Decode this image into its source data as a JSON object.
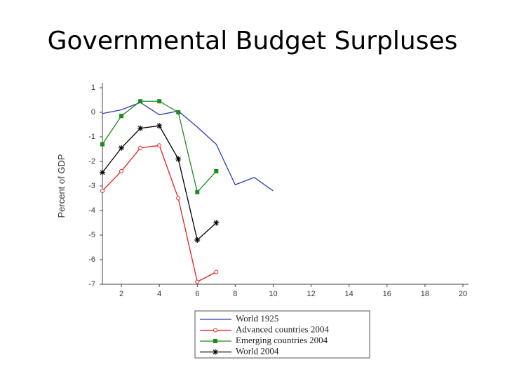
{
  "chart_data": {
    "type": "line",
    "title": "Governmental Budget Surpluses",
    "y_label": "Percent of GDP",
    "xlim": [
      1,
      20
    ],
    "xticks": [
      2,
      4,
      6,
      8,
      10,
      12,
      14,
      16,
      18,
      20
    ],
    "ylim": [
      -7,
      1
    ],
    "yticks": [
      1,
      0,
      -1,
      -2,
      -3,
      -4,
      -5,
      -6,
      -7
    ],
    "series": [
      {
        "name": "World 1925",
        "color": "#2e3bb0",
        "marker": "none",
        "x": [
          1,
          2,
          3,
          4,
          5,
          6,
          7,
          8,
          9,
          10
        ],
        "values": [
          -0.05,
          0.1,
          0.4,
          -0.1,
          0.05,
          -0.6,
          -1.3,
          -2.95,
          -2.65,
          -3.2
        ]
      },
      {
        "name": "Advanced countries 2004",
        "color": "#e02020",
        "marker": "circle",
        "x": [
          1,
          2,
          3,
          4,
          5,
          6,
          7
        ],
        "values": [
          -3.2,
          -2.4,
          -1.45,
          -1.35,
          -3.5,
          -6.9,
          -6.5
        ]
      },
      {
        "name": "Emerging countries 2004",
        "color": "#1a8a1a",
        "marker": "square",
        "x": [
          1,
          2,
          3,
          4,
          5,
          6,
          7
        ],
        "values": [
          -1.3,
          -0.15,
          0.45,
          0.45,
          0.0,
          -3.25,
          -2.4
        ]
      },
      {
        "name": "World 2004",
        "color": "#000000",
        "marker": "star",
        "x": [
          1,
          2,
          3,
          4,
          5,
          6,
          7
        ],
        "values": [
          -2.45,
          -1.45,
          -0.65,
          -0.55,
          -1.9,
          -5.2,
          -4.5
        ]
      }
    ]
  }
}
